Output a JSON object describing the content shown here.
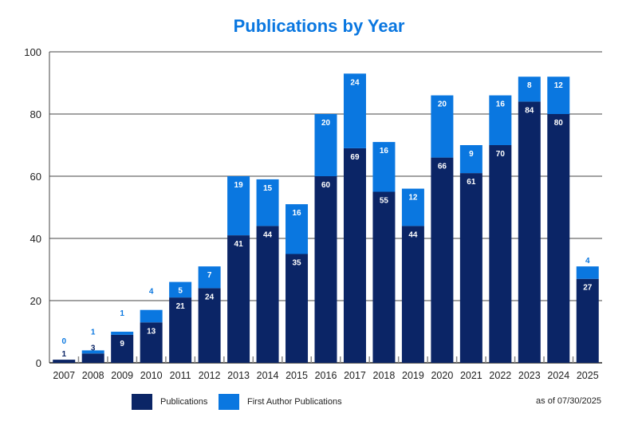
{
  "chart_data": {
    "type": "bar",
    "stacked": true,
    "title": "Publications by Year",
    "xlabel": "",
    "ylabel": "",
    "ylim": [
      0,
      100
    ],
    "yticks": [
      0,
      20,
      40,
      60,
      80,
      100
    ],
    "grid": true,
    "categories": [
      "2007",
      "2008",
      "2009",
      "2010",
      "2011",
      "2012",
      "2013",
      "2014",
      "2015",
      "2016",
      "2017",
      "2018",
      "2019",
      "2020",
      "2021",
      "2022",
      "2023",
      "2024",
      "2025"
    ],
    "series": [
      {
        "name": "Publications",
        "color": "#0b2566",
        "values": [
          1,
          3,
          9,
          13,
          21,
          24,
          41,
          44,
          35,
          60,
          69,
          55,
          44,
          66,
          61,
          70,
          84,
          80,
          27
        ]
      },
      {
        "name": "First Author Publications",
        "color": "#0a77e0",
        "values": [
          0,
          1,
          1,
          4,
          5,
          7,
          19,
          15,
          16,
          20,
          24,
          16,
          12,
          20,
          9,
          16,
          8,
          12,
          4
        ]
      }
    ],
    "legend_position": "bottom",
    "annotation": "as of 07/30/2025"
  }
}
